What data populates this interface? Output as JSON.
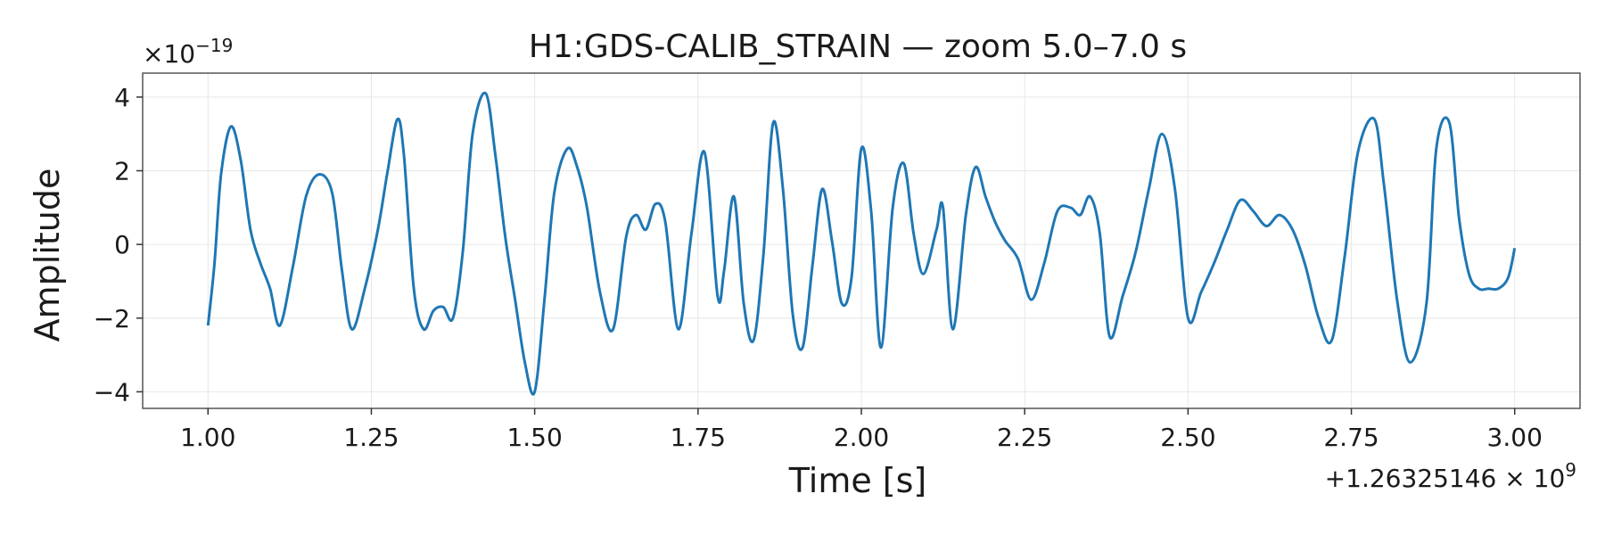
{
  "chart_data": {
    "type": "line",
    "title": "H1:GDS-CALIB_STRAIN — zoom 5.0–7.0 s",
    "xlabel": "Time [s]",
    "ylabel": "Amplitude",
    "x_offset_label": "+1.26325146 × 10",
    "x_offset_exp": "9",
    "y_multiplier_label": "×10",
    "y_multiplier_exp": "−19",
    "xlim": [
      0.9,
      3.1
    ],
    "ylim": [
      -4.45,
      4.65
    ],
    "x_ticks": [
      1.0,
      1.25,
      1.5,
      1.75,
      2.0,
      2.25,
      2.5,
      2.75,
      3.0
    ],
    "x_tick_labels": [
      "1.00",
      "1.25",
      "1.50",
      "1.75",
      "2.00",
      "2.25",
      "2.50",
      "2.75",
      "3.00"
    ],
    "y_ticks": [
      -4,
      -2,
      0,
      2,
      4
    ],
    "y_tick_labels": [
      "−4",
      "−2",
      "0",
      "2",
      "4"
    ],
    "grid": true,
    "series_color": "#1f77b4",
    "series": [
      {
        "x": [
          1.0,
          1.01,
          1.02,
          1.035,
          1.05,
          1.065,
          1.08,
          1.095,
          1.11,
          1.13,
          1.15,
          1.17,
          1.19,
          1.205,
          1.22,
          1.24,
          1.26,
          1.275,
          1.29,
          1.3,
          1.315,
          1.33,
          1.345,
          1.36,
          1.375,
          1.39,
          1.405,
          1.425,
          1.44,
          1.455,
          1.47,
          1.485,
          1.5,
          1.515,
          1.53,
          1.55,
          1.565,
          1.58,
          1.6,
          1.62,
          1.64,
          1.655,
          1.67,
          1.685,
          1.7,
          1.72,
          1.74,
          1.76,
          1.78,
          1.79,
          1.805,
          1.82,
          1.835,
          1.85,
          1.865,
          1.88,
          1.895,
          1.91,
          1.925,
          1.94,
          1.955,
          1.97,
          1.985,
          2.0,
          2.015,
          2.03,
          2.048,
          2.065,
          2.08,
          2.095,
          2.115,
          2.125,
          2.14,
          2.16,
          2.175,
          2.19,
          2.205,
          2.22,
          2.24,
          2.26,
          2.28,
          2.3,
          2.32,
          2.335,
          2.35,
          2.365,
          2.38,
          2.4,
          2.42,
          2.44,
          2.46,
          2.48,
          2.5,
          2.52,
          2.54,
          2.56,
          2.58,
          2.6,
          2.62,
          2.64,
          2.66,
          2.68,
          2.7,
          2.72,
          2.74,
          2.76,
          2.785,
          2.8,
          2.82,
          2.84,
          2.865,
          2.88,
          2.9,
          2.915,
          2.93,
          2.945,
          2.96,
          2.975,
          2.99,
          3.0
        ],
        "y": [
          -2.2,
          -0.5,
          1.9,
          3.2,
          2.3,
          0.4,
          -0.5,
          -1.2,
          -2.2,
          -0.6,
          1.3,
          1.9,
          1.4,
          -0.7,
          -2.3,
          -1.2,
          0.4,
          2.0,
          3.4,
          2.4,
          -1.2,
          -2.3,
          -1.8,
          -1.7,
          -2.0,
          -0.2,
          3.0,
          4.1,
          2.4,
          0.2,
          -1.5,
          -3.2,
          -4.0,
          -1.5,
          1.4,
          2.6,
          2.1,
          1.0,
          -1.3,
          -2.3,
          0.2,
          0.8,
          0.4,
          1.1,
          0.6,
          -2.3,
          0.3,
          2.5,
          -1.4,
          -0.7,
          1.3,
          -1.6,
          -2.6,
          -0.3,
          3.3,
          1.5,
          -1.9,
          -2.8,
          -0.6,
          1.5,
          0.1,
          -1.6,
          -0.9,
          2.6,
          0.9,
          -2.8,
          1.0,
          2.2,
          0.3,
          -0.8,
          0.4,
          1.0,
          -2.3,
          0.8,
          2.1,
          1.3,
          0.6,
          0.1,
          -0.4,
          -1.5,
          -0.5,
          0.9,
          1.0,
          0.8,
          1.3,
          0.3,
          -2.5,
          -1.4,
          -0.2,
          1.5,
          3.0,
          1.5,
          -2.0,
          -1.3,
          -0.5,
          0.4,
          1.2,
          0.9,
          0.5,
          0.8,
          0.4,
          -0.6,
          -2.0,
          -2.6,
          -0.3,
          2.5,
          3.4,
          1.6,
          -1.5,
          -3.2,
          -1.6,
          2.6,
          3.3,
          0.7,
          -0.8,
          -1.2,
          -1.2,
          -1.2,
          -0.9,
          -0.1
        ]
      }
    ]
  }
}
